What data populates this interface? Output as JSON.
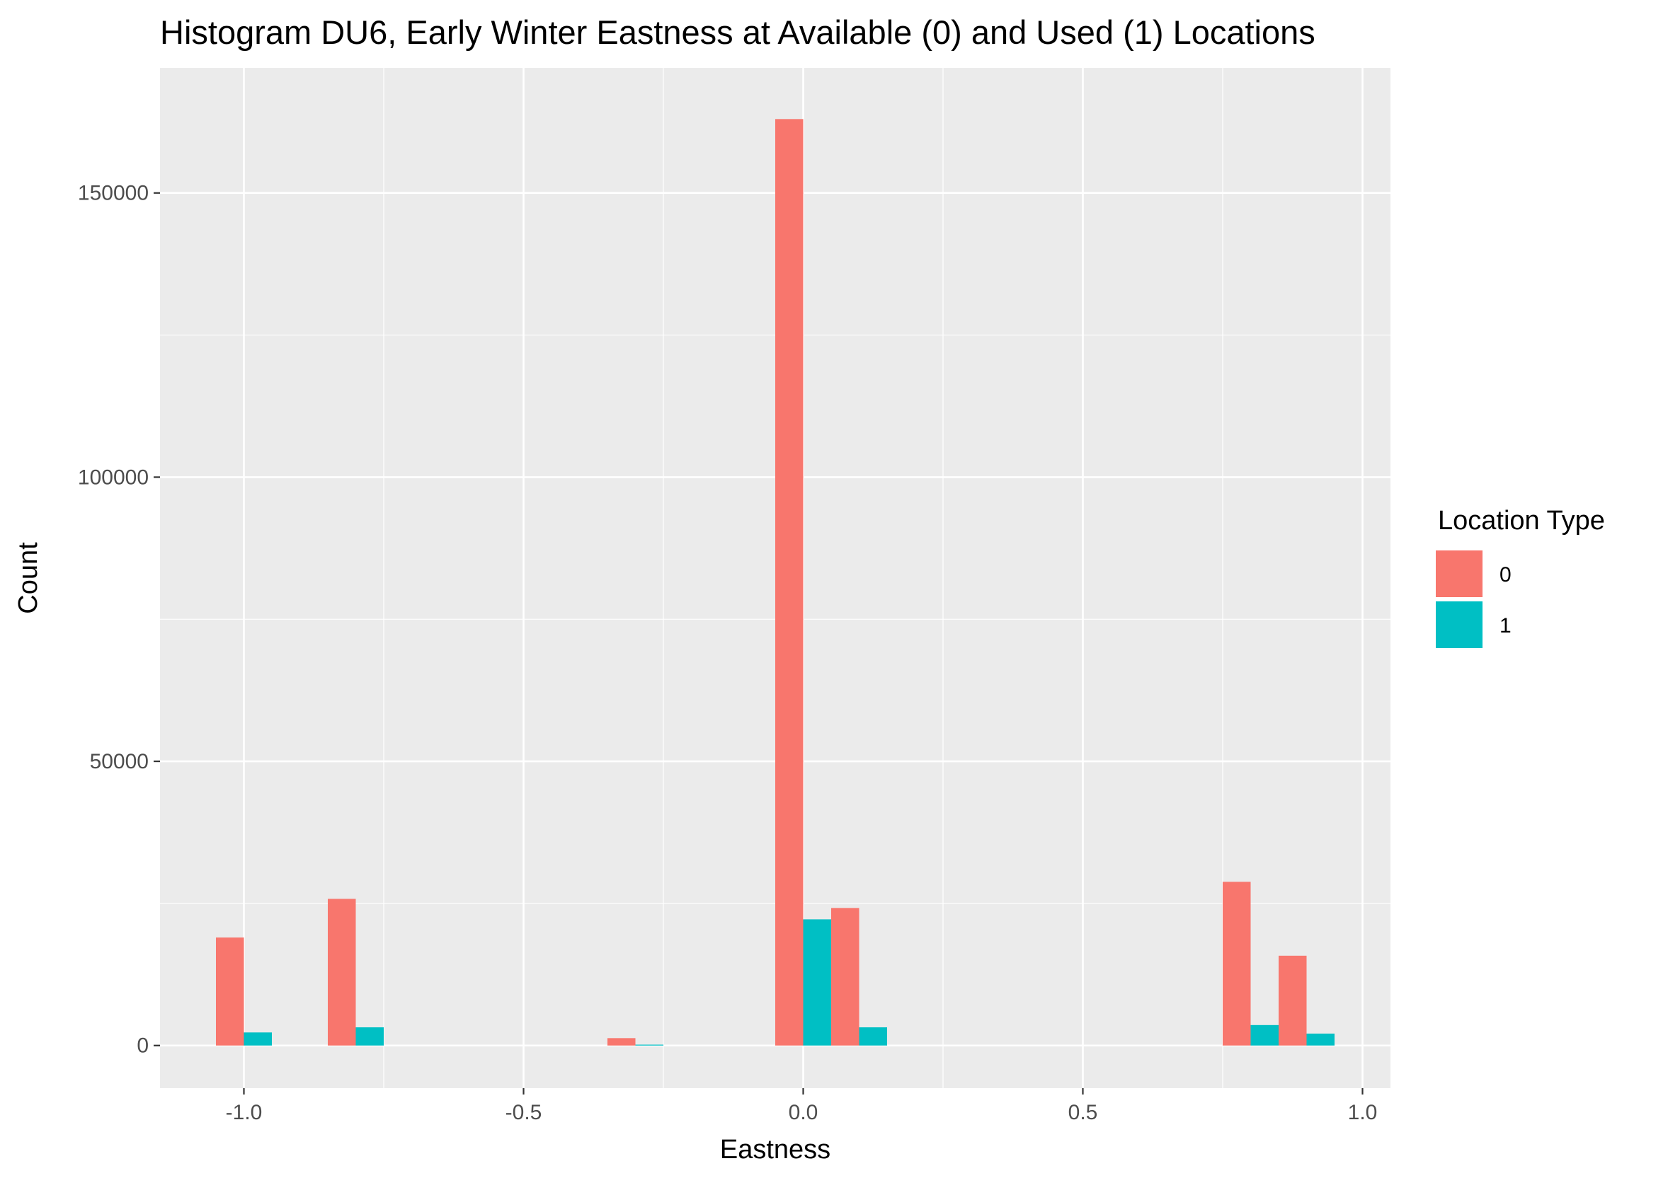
{
  "chart_data": {
    "type": "bar",
    "title": "Histogram DU6, Early Winter Eastness at Available (0) and Used (1) Locations",
    "xlabel": "Eastness",
    "ylabel": "Count",
    "xlim": [
      -1.15,
      1.05
    ],
    "ylim": [
      -7500,
      172000
    ],
    "x_ticks": [
      -1.0,
      -0.5,
      0.0,
      0.5,
      1.0
    ],
    "x_tick_labels": [
      "-1.0",
      "-0.5",
      "0.0",
      "0.5",
      "1.0"
    ],
    "y_ticks": [
      0,
      50000,
      100000,
      150000
    ],
    "y_tick_labels": [
      "0",
      "50000",
      "100000",
      "150000"
    ],
    "grid": true,
    "legend_position": "right",
    "legend_title": "Location Type",
    "bin_width": 0.1,
    "bins": [
      -1.0,
      -0.8,
      -0.3,
      0.0,
      0.1,
      0.8,
      0.9
    ],
    "series": [
      {
        "name": "0",
        "color": "#F8766D",
        "values": [
          19000,
          25800,
          1300,
          163000,
          24200,
          28800,
          15800
        ]
      },
      {
        "name": "1",
        "color": "#00BFC4",
        "values": [
          2300,
          3200,
          150,
          22200,
          3200,
          3600,
          2100
        ]
      }
    ]
  }
}
